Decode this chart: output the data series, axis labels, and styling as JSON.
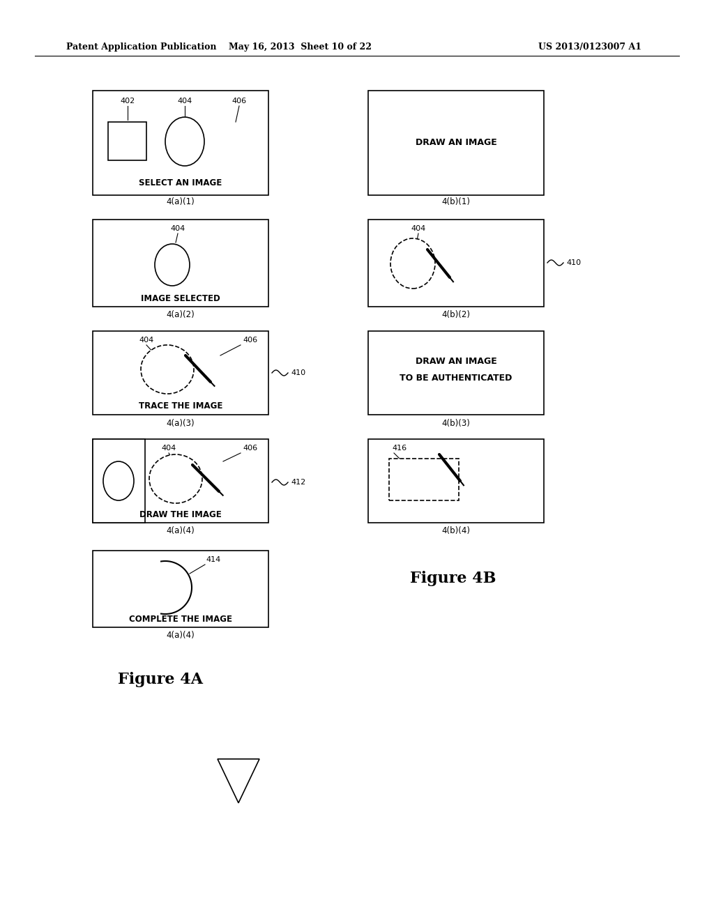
{
  "bg_color": "#ffffff",
  "header_left": "Patent Application Publication",
  "header_mid": "May 16, 2013  Sheet 10 of 22",
  "header_right": "US 2013/0123007 A1",
  "fig4a_label": "Figure 4A",
  "fig4b_label": "Figure 4B"
}
